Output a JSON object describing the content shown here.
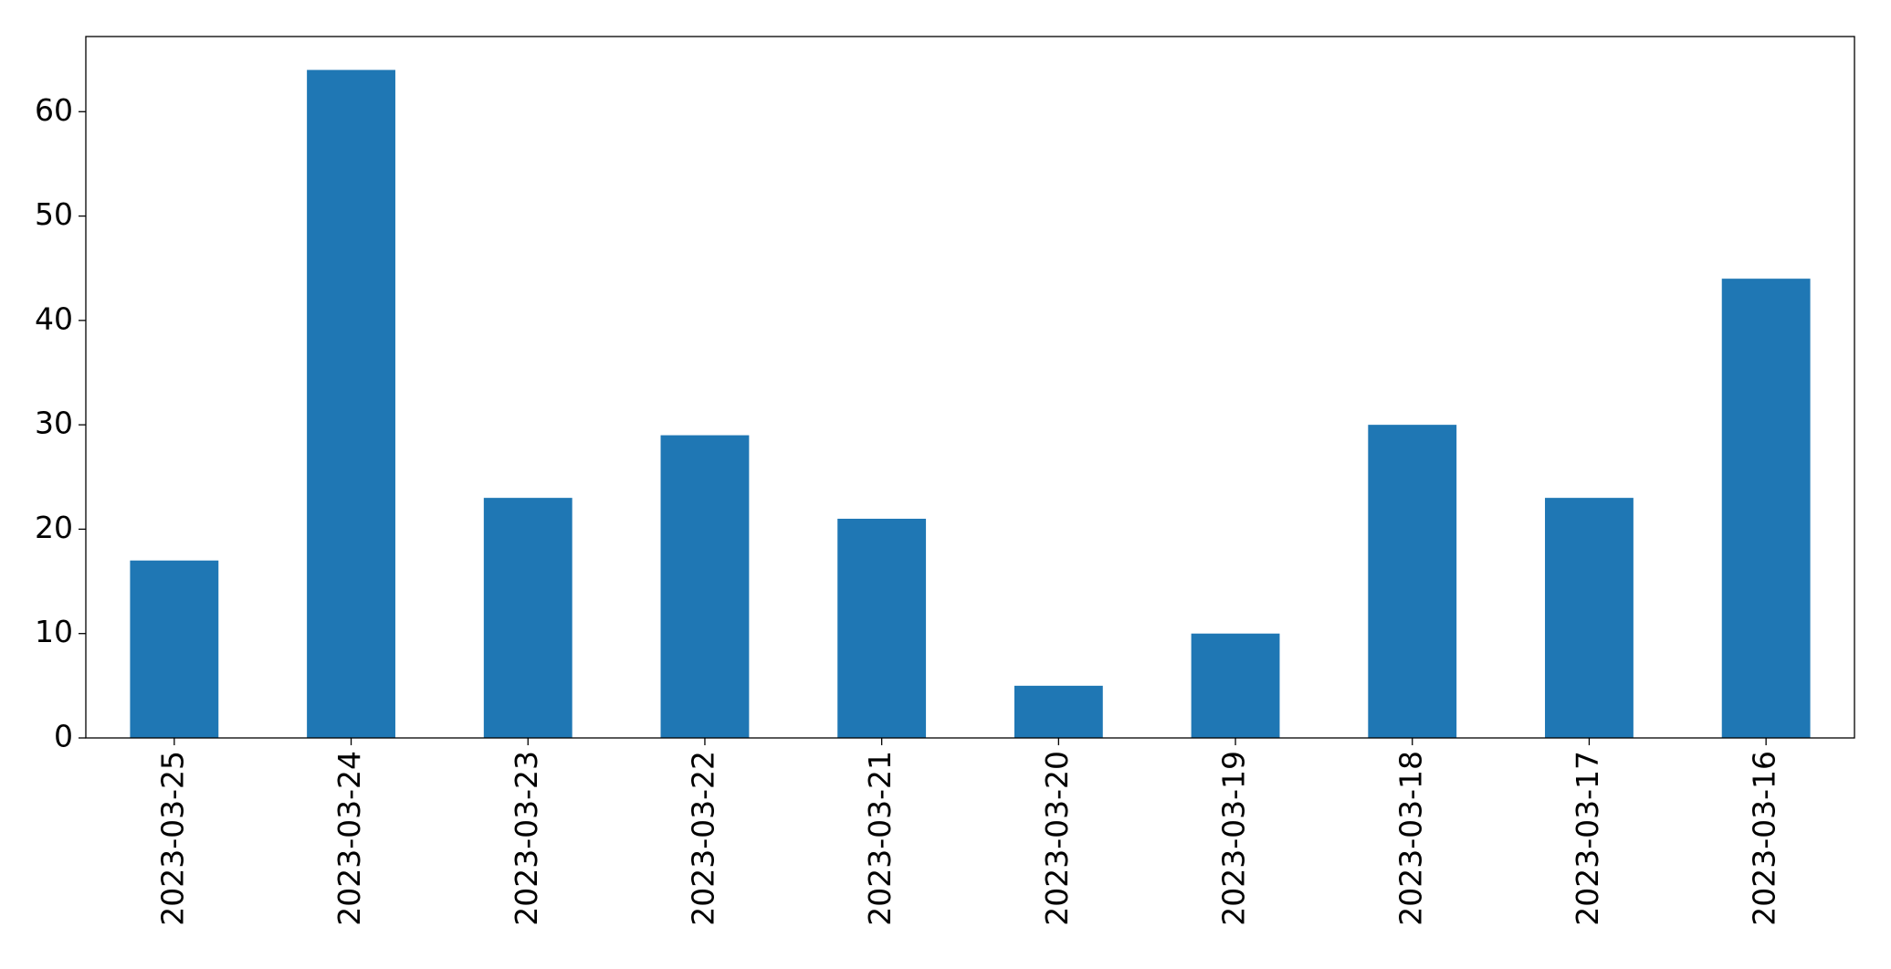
{
  "chart_data": {
    "type": "bar",
    "categories": [
      "2023-03-25",
      "2023-03-24",
      "2023-03-23",
      "2023-03-22",
      "2023-03-21",
      "2023-03-20",
      "2023-03-19",
      "2023-03-18",
      "2023-03-17",
      "2023-03-16"
    ],
    "values": [
      17,
      64,
      23,
      29,
      21,
      5,
      10,
      30,
      23,
      44
    ],
    "color": "#1f77b4",
    "ylim": [
      0,
      67.2
    ],
    "yticks": [
      0,
      10,
      20,
      30,
      40,
      50,
      60
    ],
    "grid": false
  }
}
